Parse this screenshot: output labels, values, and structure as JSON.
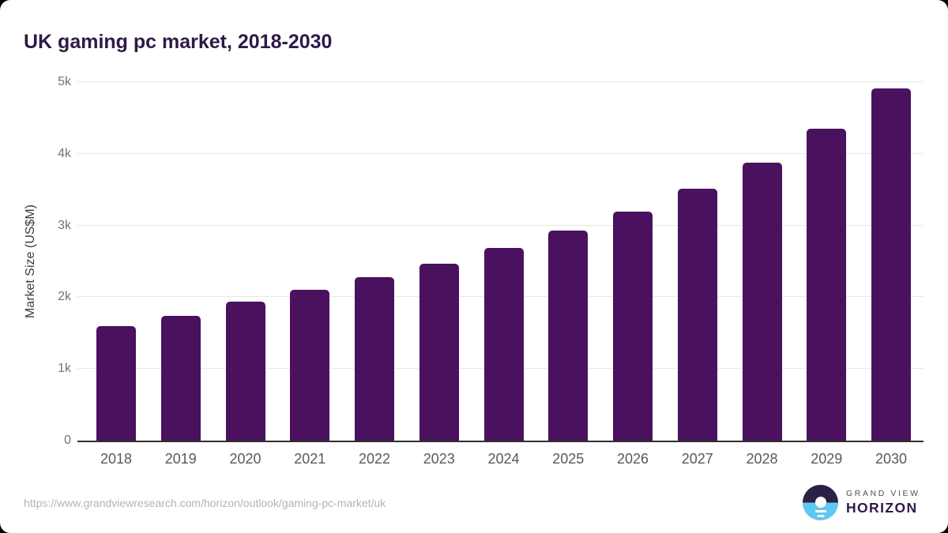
{
  "page": {
    "title": "UK gaming pc market, 2018-2030"
  },
  "chart_data": {
    "type": "bar",
    "title": "UK gaming pc market, 2018-2030",
    "categories": [
      "2018",
      "2019",
      "2020",
      "2021",
      "2022",
      "2023",
      "2024",
      "2025",
      "2026",
      "2027",
      "2028",
      "2029",
      "2030"
    ],
    "values": [
      1597,
      1741,
      1933,
      2104,
      2280,
      2467,
      2687,
      2930,
      3194,
      3513,
      3877,
      4350,
      4912
    ],
    "xlabel": "",
    "ylabel": "Market Size (US$M)",
    "ylim": [
      0,
      5000
    ],
    "yticks": [
      {
        "value": 0,
        "label": "0"
      },
      {
        "value": 1000,
        "label": "1k"
      },
      {
        "value": 2000,
        "label": "2k"
      },
      {
        "value": 3000,
        "label": "3k"
      },
      {
        "value": 4000,
        "label": "4k"
      },
      {
        "value": 5000,
        "label": "5k"
      }
    ],
    "grid": true,
    "legend": null,
    "bar_color": "#4a115e"
  },
  "footer": {
    "source_url": "https://www.grandviewresearch.com/horizon/outlook/gaming-pc-market/uk",
    "logo": {
      "line1": "GRAND VIEW",
      "line2": "HORIZON",
      "icon_top_color": "#2b2144",
      "icon_bottom_color": "#5fc8f0"
    }
  }
}
